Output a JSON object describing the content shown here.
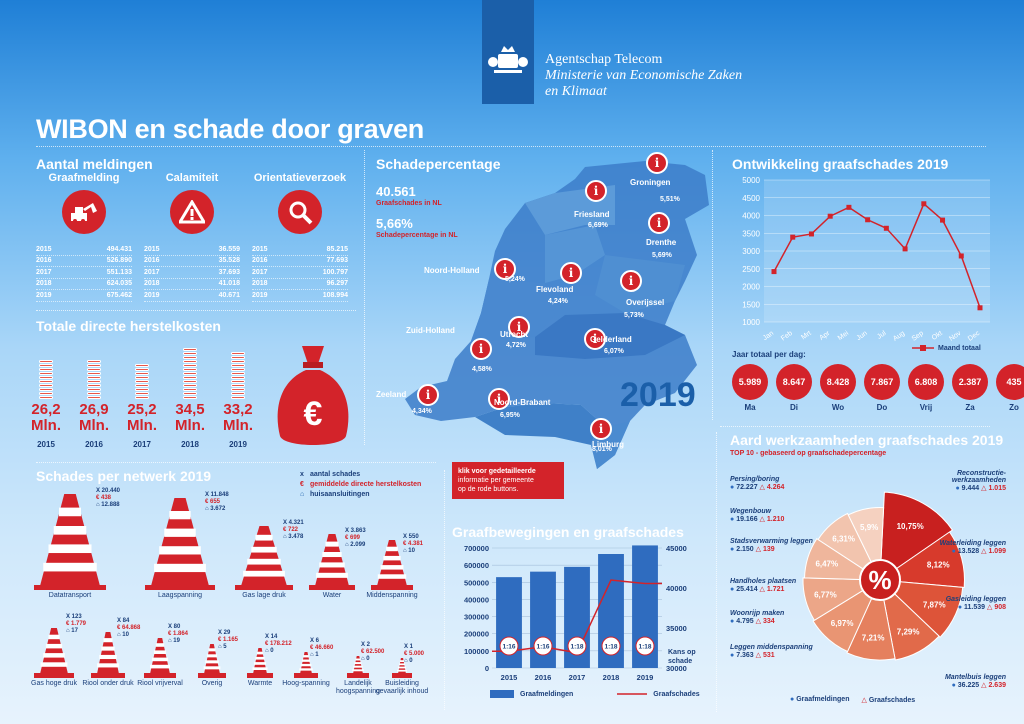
{
  "header": {
    "line1": "Agentschap Telecom",
    "line2": "Ministerie van Economische Zaken",
    "line3": "en Klimaat"
  },
  "title": "WIBON en schade door graven",
  "meldingen": {
    "title": "Aantal meldingen",
    "columns": [
      {
        "label": "Graafmelding",
        "icon": "excavator-icon",
        "rows": [
          [
            "2015",
            "494.431"
          ],
          [
            "2016",
            "526.890"
          ],
          [
            "2017",
            "551.133"
          ],
          [
            "2018",
            "624.035"
          ],
          [
            "2019",
            "675.462"
          ]
        ]
      },
      {
        "label": "Calamiteit",
        "icon": "warning-icon",
        "rows": [
          [
            "2015",
            "36.559"
          ],
          [
            "2016",
            "35.528"
          ],
          [
            "2017",
            "37.693"
          ],
          [
            "2018",
            "41.018"
          ],
          [
            "2019",
            "40.671"
          ]
        ]
      },
      {
        "label": "Orientatieverzoek",
        "icon": "magnifier-icon",
        "rows": [
          [
            "2015",
            "85.215"
          ],
          [
            "2016",
            "77.693"
          ],
          [
            "2017",
            "100.797"
          ],
          [
            "2018",
            "96.297"
          ],
          [
            "2019",
            "108.994"
          ]
        ]
      }
    ]
  },
  "herstelkosten": {
    "title": "Totale directe herstelkosten",
    "items": [
      {
        "value": "26,2",
        "unit": "Mln.",
        "year": "2015",
        "coins": 10
      },
      {
        "value": "26,9",
        "unit": "Mln.",
        "year": "2016",
        "coins": 10
      },
      {
        "value": "25,2",
        "unit": "Mln.",
        "year": "2017",
        "coins": 9
      },
      {
        "value": "34,5",
        "unit": "Mln.",
        "year": "2018",
        "coins": 13
      },
      {
        "value": "33,2",
        "unit": "Mln.",
        "year": "2019",
        "coins": 12
      }
    ],
    "symbol": "€"
  },
  "schade": {
    "title": "Schadepercentage",
    "total": "40.561",
    "total_label": "Graafschades in NL",
    "pct": "5,66%",
    "pct_label": "Schadepercentage in NL",
    "year": "2019",
    "pin_glyph": "i",
    "provinces": [
      {
        "name": "Groningen",
        "pct": "5,51%"
      },
      {
        "name": "Friesland",
        "pct": "6,69%"
      },
      {
        "name": "Drenthe",
        "pct": "5,69%"
      },
      {
        "name": "Noord-Holland",
        "pct": "5,24%"
      },
      {
        "name": "Flevoland",
        "pct": "4,24%"
      },
      {
        "name": "Overijssel",
        "pct": "5,73%"
      },
      {
        "name": "Zuid-Holland",
        "pct": "4,58%"
      },
      {
        "name": "Utrecht",
        "pct": "4,72%"
      },
      {
        "name": "Gelderland",
        "pct": "6,07%"
      },
      {
        "name": "Zeeland",
        "pct": "4,34%"
      },
      {
        "name": "Noord-Brabant",
        "pct": "6,95%"
      },
      {
        "name": "Limburg",
        "pct": "8,01%"
      }
    ],
    "cta": [
      "klik voor gedetailleerde",
      "informatie per gemeente",
      "op de rode buttons."
    ]
  },
  "ontwikkeling": {
    "title": "Ontwikkeling graafschades 2019",
    "legend": "Maand totaal",
    "day_title": "Jaar totaal per dag:",
    "days": [
      {
        "value": "5.989",
        "label": "Ma"
      },
      {
        "value": "8.647",
        "label": "Di"
      },
      {
        "value": "8.428",
        "label": "Wo"
      },
      {
        "value": "7.867",
        "label": "Do"
      },
      {
        "value": "6.808",
        "label": "Vrij"
      },
      {
        "value": "2.387",
        "label": "Za"
      },
      {
        "value": "435",
        "label": "Zo"
      }
    ]
  },
  "netwerk": {
    "title": "Schades per netwerk 2019",
    "legend": [
      {
        "glyph": "x",
        "label": "aantal schades"
      },
      {
        "glyph": "€",
        "label": "gemiddelde directe herstelkosten"
      },
      {
        "glyph": "⌂",
        "label": "huisaansluitingen"
      }
    ],
    "large": [
      {
        "name": "Datatransport",
        "x": "X 20.440",
        "eur": "€ 438",
        "h": "12.888"
      },
      {
        "name": "Laagspanning",
        "x": "X 11.848",
        "eur": "€ 655",
        "h": "3.672"
      },
      {
        "name": "Gas lage druk",
        "x": "X 4.321",
        "eur": "€ 722",
        "h": "3.478"
      },
      {
        "name": "Water",
        "x": "X 3.863",
        "eur": "€ 699",
        "h": "2.099"
      },
      {
        "name": "Middenspanning",
        "x": "X 550",
        "eur": "€ 4.381",
        "h": "10"
      }
    ],
    "small": [
      {
        "name": "Gas hoge druk",
        "x": "X 123",
        "eur": "€ 1.779",
        "h": "17"
      },
      {
        "name": "Riool onder druk",
        "x": "X 84",
        "eur": "€ 64.868",
        "h": "10"
      },
      {
        "name": "Riool vrijverval",
        "x": "X 80",
        "eur": "€ 1.864",
        "h": "19"
      },
      {
        "name": "Overig",
        "x": "X 29",
        "eur": "€ 1.165",
        "h": "5"
      },
      {
        "name": "Warmte",
        "x": "X 14",
        "eur": "€ 178.212",
        "h": "0"
      },
      {
        "name": "Hoog-spanning",
        "x": "X 6",
        "eur": "€ 46.660",
        "h": "1"
      },
      {
        "name": "Landelijk hoogspanning",
        "x": "X 2",
        "eur": "€ 62.500",
        "h": "0"
      },
      {
        "name": "Buisleiding gevaarlijk inhoud",
        "x": "X 1",
        "eur": "€ 5.000",
        "h": "0"
      }
    ]
  },
  "graafbew": {
    "title": "Graafbewegingen en graafschades",
    "legend_bar": "Graafmeldingen",
    "legend_line": "Graafschades",
    "right_axis_note": "Kans op schade",
    "ratios": [
      "1:16",
      "1:16",
      "1:18",
      "1:18",
      "1:18"
    ]
  },
  "aard": {
    "title": "Aard werkzaamheden graafschades 2019",
    "subtitle": "TOP 10 - gebaseerd op graafschadepercentage",
    "center_glyph": "%",
    "left": [
      {
        "label": "Persing/boring",
        "m": "72.227",
        "s": "4.264"
      },
      {
        "label": "Wegenbouw",
        "m": "19.166",
        "s": "1.210"
      },
      {
        "label": "Stadsverwarming leggen",
        "m": "2.150",
        "s": "139"
      },
      {
        "label": "Handholes plaatsen",
        "m": "25.414",
        "s": "1.721"
      },
      {
        "label": "Woonrijp maken",
        "m": "4.795",
        "s": "334"
      },
      {
        "label": "Leggen middenspanning",
        "m": "7.363",
        "s": "531"
      }
    ],
    "right": [
      {
        "label": "Reconstructie-werkzaamheden",
        "m": "9.444",
        "s": "1.015"
      },
      {
        "label": "Waterleiding leggen",
        "m": "13.528",
        "s": "1.099"
      },
      {
        "label": "Gasleiding leggen",
        "m": "11.539",
        "s": "908"
      },
      {
        "label": "Mantelbuis leggen",
        "m": "36.225",
        "s": "2.639"
      }
    ],
    "legend_m": "Graafmeldingen",
    "legend_s": "Graafschades",
    "slices": [
      {
        "label": "10,75%",
        "value": 10.75,
        "color": "#c8201f"
      },
      {
        "label": "8,12%",
        "value": 8.12,
        "color": "#d73a2c"
      },
      {
        "label": "7,87%",
        "value": 7.87,
        "color": "#dd5439"
      },
      {
        "label": "7,29%",
        "value": 7.29,
        "color": "#e16a4a"
      },
      {
        "label": "7,21%",
        "value": 7.21,
        "color": "#e5805e"
      },
      {
        "label": "6,97%",
        "value": 6.97,
        "color": "#e99573"
      },
      {
        "label": "6,77%",
        "value": 6.77,
        "color": "#eca688"
      },
      {
        "label": "6,47%",
        "value": 6.47,
        "color": "#efb69c"
      },
      {
        "label": "6,31%",
        "value": 6.31,
        "color": "#f2c4ae"
      },
      {
        "label": "5,9%",
        "value": 5.9,
        "color": "#f5d1c0"
      }
    ]
  },
  "chart_data": [
    {
      "type": "line",
      "title": "Ontwikkeling graafschades 2019",
      "categories": [
        "Jan",
        "Feb",
        "Mrt",
        "Apr",
        "Mei",
        "Jun",
        "Jul",
        "Aug",
        "Sep",
        "Okt",
        "Nov",
        "Dec"
      ],
      "series": [
        {
          "name": "Maand totaal",
          "values": [
            2420,
            3390,
            3480,
            3980,
            4230,
            3880,
            3640,
            3060,
            4330,
            3870,
            2860,
            1400
          ]
        }
      ],
      "ylim": [
        1000,
        5000
      ],
      "yticks": [
        "1000",
        "1500",
        "2000",
        "2500",
        "3000",
        "3500",
        "4000",
        "4500",
        "5000"
      ],
      "grid": true,
      "legend": "bottom-right"
    },
    {
      "type": "bar",
      "title": "Graafbewegingen en graafschades",
      "categories": [
        "2015",
        "2016",
        "2017",
        "2018",
        "2019"
      ],
      "series": [
        {
          "name": "Graafmeldingen",
          "values": [
            530000,
            562000,
            590000,
            665000,
            715000
          ]
        },
        {
          "name": "Graafschades",
          "values": [
            32100,
            32650,
            31900,
            41000,
            40561
          ]
        }
      ],
      "ylim": [
        0,
        700000
      ],
      "yticks": [
        "0",
        "100000",
        "200000",
        "300000",
        "400000",
        "500000",
        "600000",
        "700000"
      ],
      "y2lim": [
        30000,
        45000
      ],
      "y2ticks": [
        "30000",
        "35000",
        "40000",
        "45000"
      ],
      "legend": "bottom"
    }
  ]
}
